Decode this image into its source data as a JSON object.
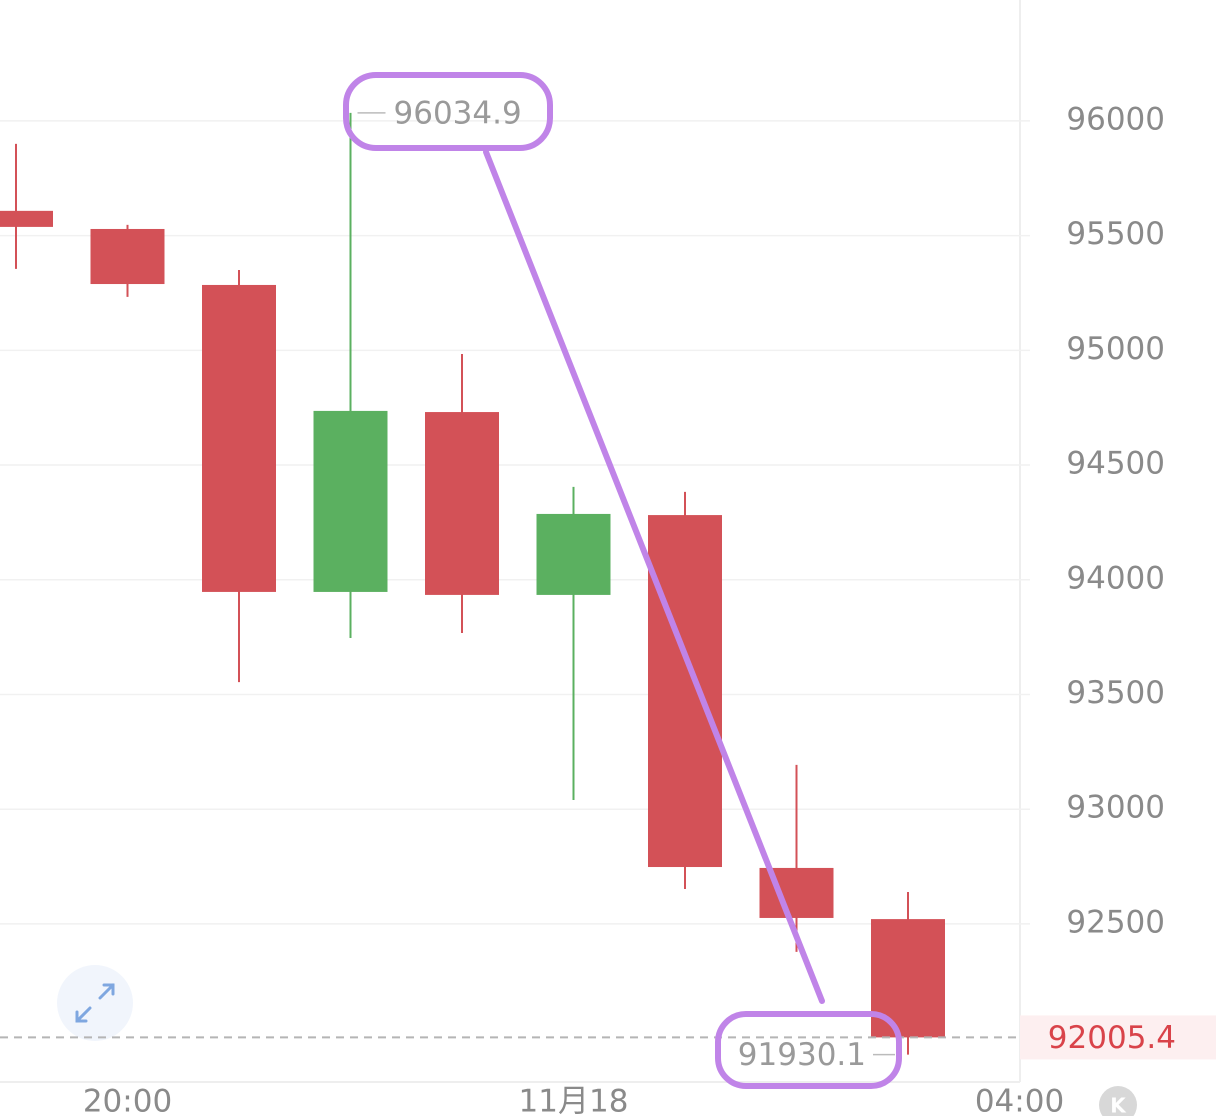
{
  "chart_data": {
    "type": "candlestick",
    "categories": [
      null,
      "20:00",
      null,
      null,
      null,
      "11月18",
      null,
      null,
      null,
      "04:00"
    ],
    "open": [
      95608,
      95529,
      95285,
      93947,
      94731,
      93934,
      94282,
      92744,
      92521,
      null
    ],
    "high": [
      95900,
      95547,
      95350,
      96034.9,
      94984,
      94405,
      94383,
      93193,
      92639,
      null
    ],
    "low": [
      95355,
      95233,
      93554,
      93746,
      93768,
      93040,
      92652,
      92378,
      91930.1,
      null
    ],
    "close": [
      95538,
      95289,
      93947,
      94736,
      93934,
      94287,
      92748,
      92526,
      92005.4,
      null
    ],
    "up_color": "#5bb060",
    "down_color": "#d35157",
    "ylim": [
      91811,
      96527
    ],
    "yticks": [
      92500,
      93000,
      93500,
      94000,
      94500,
      95000,
      95500,
      96000
    ],
    "grid": true,
    "last_price_color": "#d9434a",
    "logo_text": "K"
  }
}
